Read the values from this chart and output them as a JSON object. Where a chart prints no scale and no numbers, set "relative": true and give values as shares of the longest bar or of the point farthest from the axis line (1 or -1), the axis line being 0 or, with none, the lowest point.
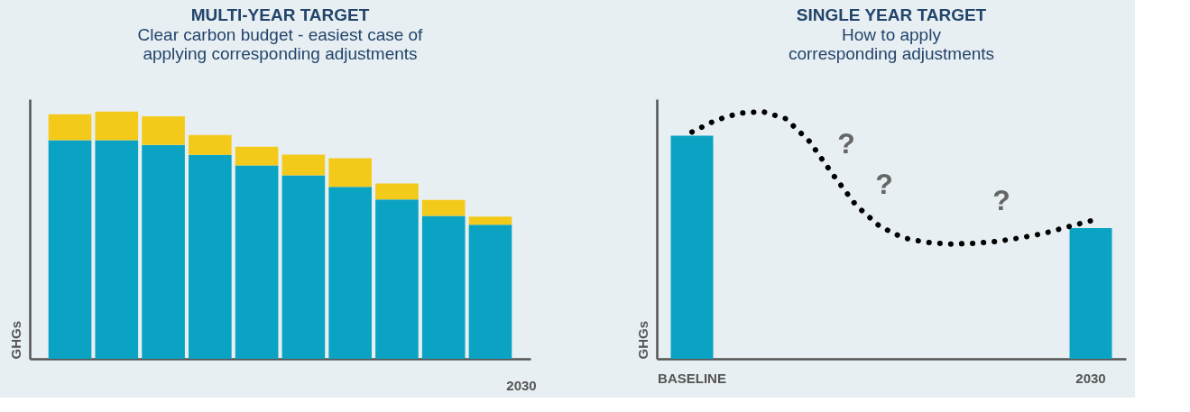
{
  "chart_data": [
    {
      "type": "bar",
      "title": "MULTI-YEAR TARGET",
      "subtitle": "Clear carbon budget - easiest case of applying corresponding adjustments",
      "ylabel": "GHGs",
      "relative": true,
      "stacked": true,
      "tick_labels": false,
      "annotations": [
        "2030"
      ],
      "categories": [
        null,
        null,
        null,
        null,
        null,
        null,
        null,
        null,
        null,
        null
      ],
      "series": [
        {
          "color": "#0ba3c3",
          "values": [
            0.884,
            0.884,
            0.865,
            0.825,
            0.782,
            0.742,
            0.695,
            0.644,
            0.578,
            0.542
          ]
        },
        {
          "color": "#f4ca1a",
          "values": [
            0.105,
            0.116,
            0.116,
            0.08,
            0.076,
            0.084,
            0.116,
            0.065,
            0.065,
            0.033
          ]
        }
      ]
    },
    {
      "type": "bar",
      "title": "SINGLE YEAR TARGET",
      "subtitle": "How to apply corresponding adjustments",
      "ylabel": "GHGs",
      "relative": true,
      "tick_labels": "x",
      "line_style": "dotted",
      "annotations": [
        "?",
        "?",
        "?"
      ],
      "categories": [
        "BASELINE",
        null,
        null,
        null,
        null,
        null,
        null,
        null,
        null,
        null,
        null,
        null,
        null,
        null,
        null,
        null,
        null,
        "2030"
      ],
      "series": [
        {
          "color": "#0ba3c3",
          "values": [
            0.902,
            null,
            null,
            null,
            null,
            null,
            null,
            null,
            null,
            null,
            null,
            null,
            null,
            null,
            null,
            null,
            null,
            0.529
          ]
        },
        {
          "type": "line",
          "color": "#000000",
          "values": [
            0.917,
            0.964,
            0.993,
            1.0,
            0.971,
            0.88,
            0.746,
            0.62,
            0.536,
            0.489,
            0.471,
            0.464,
            0.467,
            0.475,
            0.489,
            0.507,
            0.533,
            0.558
          ]
        }
      ]
    }
  ]
}
